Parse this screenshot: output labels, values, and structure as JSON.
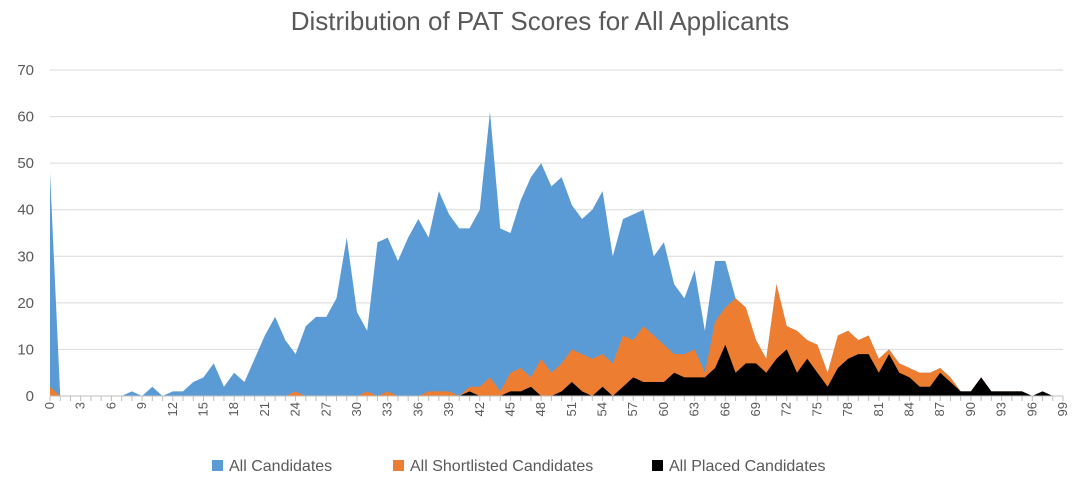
{
  "chart_data": {
    "type": "area",
    "title": "Distribution of PAT Scores for All Applicants",
    "xlabel": "",
    "ylabel": "",
    "xlim": [
      0,
      99
    ],
    "ylim": [
      0,
      70
    ],
    "yticks": [
      0,
      10,
      20,
      30,
      40,
      50,
      60,
      70
    ],
    "xticks": [
      0,
      3,
      6,
      9,
      12,
      15,
      18,
      21,
      24,
      27,
      30,
      33,
      36,
      39,
      42,
      45,
      48,
      51,
      54,
      57,
      60,
      63,
      66,
      69,
      72,
      75,
      78,
      81,
      84,
      87,
      90,
      93,
      96,
      99
    ],
    "grid": "horizontal",
    "legend_position": "bottom",
    "x": [
      0,
      1,
      2,
      3,
      4,
      5,
      6,
      7,
      8,
      9,
      10,
      11,
      12,
      13,
      14,
      15,
      16,
      17,
      18,
      19,
      20,
      21,
      22,
      23,
      24,
      25,
      26,
      27,
      28,
      29,
      30,
      31,
      32,
      33,
      34,
      35,
      36,
      37,
      38,
      39,
      40,
      41,
      42,
      43,
      44,
      45,
      46,
      47,
      48,
      49,
      50,
      51,
      52,
      53,
      54,
      55,
      56,
      57,
      58,
      59,
      60,
      61,
      62,
      63,
      64,
      65,
      66,
      67,
      68,
      69,
      70,
      71,
      72,
      73,
      74,
      75,
      76,
      77,
      78,
      79,
      80,
      81,
      82,
      83,
      84,
      85,
      86,
      87,
      88,
      89,
      90,
      91,
      92,
      93,
      94,
      95,
      96,
      97,
      98,
      99
    ],
    "series": [
      {
        "name": "All Candidates",
        "color": "#5b9bd5",
        "values": [
          48,
          0,
          0,
          0,
          0,
          0,
          0,
          0,
          1,
          0,
          2,
          0,
          1,
          1,
          3,
          4,
          7,
          2,
          5,
          3,
          8,
          13,
          17,
          12,
          9,
          15,
          17,
          17,
          21,
          34,
          18,
          14,
          33,
          34,
          29,
          34,
          38,
          34,
          44,
          39,
          36,
          36,
          40,
          61,
          36,
          35,
          42,
          47,
          50,
          45,
          47,
          41,
          38,
          40,
          44,
          30,
          38,
          39,
          40,
          30,
          33,
          24,
          21,
          27,
          14,
          29,
          29,
          21,
          19,
          12,
          8,
          24,
          15,
          14,
          12,
          11,
          5,
          13,
          14,
          12,
          13,
          8,
          10,
          7,
          6,
          5,
          5,
          6,
          4,
          1,
          1,
          4,
          1,
          1,
          1,
          1,
          0,
          1,
          0,
          0
        ]
      },
      {
        "name": "All Shortlisted Candidates",
        "color": "#ed7d31",
        "values": [
          2,
          0,
          0,
          0,
          0,
          0,
          0,
          0,
          0,
          0,
          0,
          0,
          0,
          0,
          0,
          0,
          0,
          0,
          0,
          0,
          0,
          0,
          0,
          0,
          1,
          0,
          0,
          0,
          0,
          0,
          0,
          1,
          0,
          1,
          0,
          0,
          0,
          1,
          1,
          1,
          0,
          2,
          2,
          4,
          1,
          5,
          6,
          4,
          8,
          5,
          7,
          10,
          9,
          8,
          9,
          7,
          13,
          12,
          15,
          13,
          11,
          9,
          9,
          10,
          5,
          16,
          19,
          21,
          19,
          12,
          8,
          24,
          15,
          14,
          12,
          11,
          5,
          13,
          14,
          12,
          13,
          8,
          10,
          7,
          6,
          5,
          5,
          6,
          4,
          1,
          1,
          4,
          1,
          1,
          1,
          1,
          0,
          1,
          0,
          0
        ]
      },
      {
        "name": "All Placed Candidates",
        "color": "#000000",
        "values": [
          0,
          0,
          0,
          0,
          0,
          0,
          0,
          0,
          0,
          0,
          0,
          0,
          0,
          0,
          0,
          0,
          0,
          0,
          0,
          0,
          0,
          0,
          0,
          0,
          0,
          0,
          0,
          0,
          0,
          0,
          0,
          0,
          0,
          0,
          0,
          0,
          0,
          0,
          0,
          0,
          0,
          1,
          0,
          0,
          0,
          1,
          1,
          2,
          0,
          0,
          1,
          3,
          1,
          0,
          2,
          0,
          2,
          4,
          3,
          3,
          3,
          5,
          4,
          4,
          4,
          6,
          11,
          5,
          7,
          7,
          5,
          8,
          10,
          5,
          8,
          5,
          2,
          6,
          8,
          9,
          9,
          5,
          9,
          5,
          4,
          2,
          2,
          5,
          3,
          1,
          1,
          4,
          1,
          1,
          1,
          1,
          0,
          1,
          0,
          0
        ]
      }
    ]
  }
}
